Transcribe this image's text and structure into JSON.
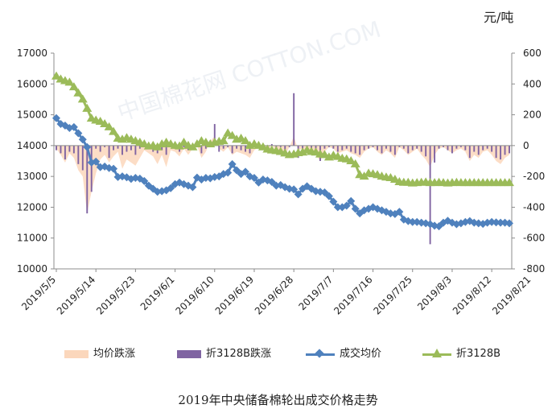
{
  "chart_data": {
    "type": "line",
    "title": "2019年中央储备棉轮出成交价格走势",
    "unit_label": "元/吨",
    "x_tick_labels": [
      "2019/5/5",
      "2019/5/14",
      "2019/5/23",
      "2019/6/1",
      "2019/6/10",
      "2019/6/19",
      "2019/6/28",
      "2019/7/7",
      "2019/7/16",
      "2019/7/25",
      "2019/8/3",
      "2019/8/12",
      "2019/8/21"
    ],
    "y_left": {
      "min": 10000,
      "max": 17000,
      "ticks": [
        "10000",
        "11000",
        "12000",
        "13000",
        "14000",
        "15000",
        "16000",
        "17000"
      ]
    },
    "y_right": {
      "min": -800,
      "max": 600,
      "ticks": [
        "-800",
        "-600",
        "-400",
        "-200",
        "0",
        "200",
        "400",
        "600"
      ]
    },
    "grid": false,
    "legend_position": "bottom",
    "series": [
      {
        "name": "均价跌涨",
        "kind": "area",
        "axis": "right",
        "color": "#fbd7bc",
        "values": [
          -20,
          -60,
          -110,
          -50,
          -80,
          -160,
          -200,
          -440,
          -300,
          -180,
          -90,
          -60,
          -110,
          -70,
          -40,
          -150,
          -90,
          -110,
          -130,
          -80,
          -30,
          -50,
          -70,
          -120,
          -60,
          -140,
          -30,
          -40,
          -70,
          -20,
          -60,
          -20,
          0,
          -80,
          -40,
          30,
          60,
          -20,
          -40,
          -10,
          -60,
          -40,
          -50,
          -60,
          -80,
          -30,
          -10,
          -20,
          -50,
          10,
          -40,
          -20,
          -60,
          -10,
          60,
          -30,
          -20,
          -50,
          -40,
          -60,
          -100,
          -40,
          -10,
          -20,
          -50,
          -40,
          -30,
          -50,
          -60,
          -80,
          -40,
          -20,
          -10,
          -40,
          -60,
          -30,
          -50,
          -80,
          -10,
          -30,
          -60,
          -40,
          -20,
          -60,
          -90,
          -140,
          -60,
          -20,
          -10,
          -30,
          -50,
          -30,
          -20,
          -40,
          -100,
          -60,
          -80,
          -40,
          -30,
          -60,
          -100,
          -120,
          -80,
          -60
        ]
      },
      {
        "name": "折3128B跌涨",
        "kind": "bar",
        "axis": "right",
        "color": "#8064a2",
        "values": [
          -30,
          -50,
          -90,
          -40,
          -50,
          -120,
          -160,
          -440,
          -300,
          -20,
          -40,
          -10,
          -80,
          -30,
          -20,
          -60,
          -40,
          -30,
          -60,
          -20,
          -10,
          -20,
          -40,
          -50,
          -30,
          -60,
          -10,
          -20,
          -40,
          -10,
          -30,
          -10,
          0,
          -50,
          -20,
          20,
          140,
          -40,
          -20,
          -10,
          -50,
          -20,
          -30,
          -40,
          -50,
          -10,
          -10,
          -20,
          -30,
          10,
          -30,
          -10,
          -50,
          -10,
          340,
          -80,
          -20,
          -40,
          -30,
          -60,
          -100,
          -20,
          -10,
          -20,
          -40,
          -30,
          -20,
          -40,
          -50,
          -60,
          -30,
          -20,
          -10,
          -30,
          -50,
          -20,
          -40,
          -60,
          -10,
          -20,
          -50,
          -30,
          -20,
          -40,
          -70,
          -640,
          -110,
          -20,
          -10,
          -30,
          -50,
          -20,
          -10,
          -30,
          -80,
          -40,
          -60,
          -30,
          -20,
          -40,
          -80,
          -90,
          -60,
          -50
        ]
      },
      {
        "name": "成交均价",
        "kind": "line",
        "axis": "left",
        "color": "#4f81bd",
        "marker": "diamond",
        "values": [
          14890,
          14700,
          14650,
          14570,
          14600,
          14400,
          14200,
          13950,
          13450,
          13480,
          13300,
          13320,
          13270,
          13250,
          12980,
          13000,
          12970,
          12920,
          12950,
          12930,
          12850,
          12700,
          12600,
          12500,
          12520,
          12550,
          12620,
          12750,
          12800,
          12750,
          12700,
          12650,
          12960,
          12900,
          12950,
          12940,
          12980,
          13000,
          13080,
          13120,
          13400,
          13200,
          13080,
          13150,
          13000,
          12950,
          12800,
          12900,
          12870,
          12820,
          12700,
          12720,
          12650,
          12600,
          12580,
          12420,
          12600,
          12680,
          12600,
          12520,
          12500,
          12480,
          12360,
          12180,
          12000,
          12000,
          12050,
          12200,
          11950,
          11800,
          11900,
          11950,
          12000,
          11950,
          11900,
          11850,
          11800,
          11780,
          11850,
          11600,
          11550,
          11520,
          11520,
          11500,
          11480,
          11450,
          11400,
          11380,
          11500,
          11560,
          11500,
          11450,
          11480,
          11520,
          11550,
          11500,
          11480,
          11460,
          11500,
          11520,
          11510,
          11500,
          11500,
          11480
        ]
      },
      {
        "name": "折3128B",
        "kind": "line",
        "axis": "left",
        "color": "#9bbb59",
        "marker": "triangle",
        "values": [
          16250,
          16150,
          16100,
          16050,
          15900,
          15700,
          15500,
          15200,
          14880,
          14820,
          14780,
          14700,
          14600,
          14450,
          14230,
          14200,
          14250,
          14200,
          14150,
          14100,
          14050,
          13980,
          14000,
          13950,
          14050,
          14100,
          14050,
          14000,
          13980,
          14100,
          14000,
          13950,
          14050,
          14150,
          14100,
          14050,
          14100,
          14130,
          14150,
          14400,
          14320,
          14200,
          14230,
          14150,
          14000,
          14050,
          14000,
          13950,
          13880,
          13850,
          13830,
          13800,
          13750,
          13700,
          13720,
          13760,
          13780,
          13850,
          13800,
          13780,
          13720,
          13700,
          13620,
          13680,
          13640,
          13580,
          13560,
          13500,
          13400,
          13050,
          13000,
          13100,
          13080,
          13050,
          13000,
          12970,
          12950,
          12900,
          12820,
          12800,
          12800,
          12780,
          12790,
          12800,
          12810,
          12790,
          12790,
          12800,
          12790,
          12780,
          12790,
          12800,
          12790,
          12790,
          12790,
          12790,
          12790,
          12790,
          12790,
          12790,
          12790,
          12790,
          12790,
          12790
        ]
      }
    ],
    "watermark": "中国棉花网 COTTON.COM"
  }
}
